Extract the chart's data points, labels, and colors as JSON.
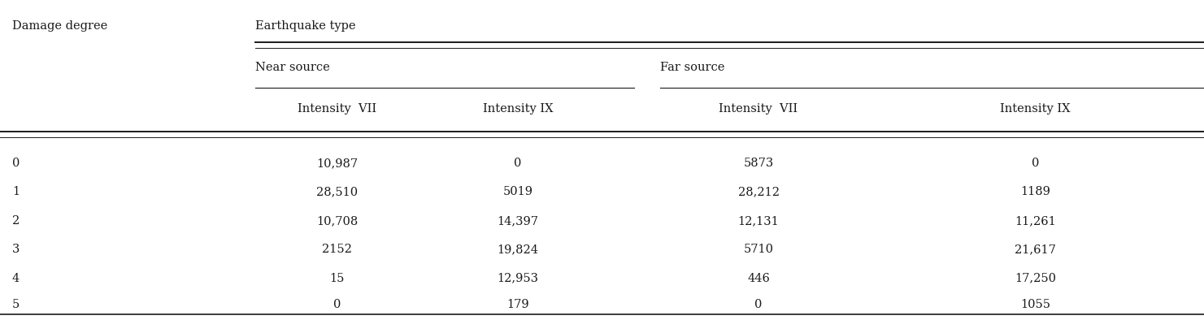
{
  "title_col0": "Damage degree",
  "title_group": "Earthquake type",
  "subgroup1": "Near source",
  "subgroup2": "Far source",
  "col1": "Intensity  VII",
  "col2": "Intensity IX",
  "col3": "Intensity  VII",
  "col4": "Intensity IX",
  "rows": [
    [
      "0",
      "10,987",
      "0",
      "5873",
      "0"
    ],
    [
      "1",
      "28,510",
      "5019",
      "28,212",
      "1189"
    ],
    [
      "2",
      "10,708",
      "14,397",
      "12,131",
      "11,261"
    ],
    [
      "3",
      "2152",
      "19,824",
      "5710",
      "21,617"
    ],
    [
      "4",
      "15",
      "12,953",
      "446",
      "17,250"
    ],
    [
      "5",
      "0",
      "179",
      "0",
      "1055"
    ]
  ],
  "bg_color": "#ffffff",
  "text_color": "#1a1a1a",
  "font_size": 10.5
}
